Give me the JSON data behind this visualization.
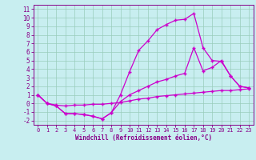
{
  "line1_x": [
    0,
    1,
    2,
    3,
    4,
    5,
    6,
    7,
    8,
    9,
    10,
    11,
    12,
    13,
    14,
    15,
    16,
    17,
    18,
    19,
    20,
    21,
    22,
    23
  ],
  "line1_y": [
    1.0,
    0.0,
    -0.3,
    -1.2,
    -1.2,
    -1.3,
    -1.5,
    -1.8,
    -1.1,
    1.0,
    3.7,
    6.2,
    7.3,
    8.6,
    9.2,
    9.7,
    9.8,
    10.5,
    6.5,
    5.0,
    4.9,
    3.2,
    2.0,
    1.8
  ],
  "line2_x": [
    0,
    1,
    2,
    3,
    4,
    5,
    6,
    7,
    8,
    9,
    10,
    11,
    12,
    13,
    14,
    15,
    16,
    17,
    18,
    19,
    20,
    21,
    22,
    23
  ],
  "line2_y": [
    1.0,
    0.0,
    -0.3,
    -1.2,
    -1.2,
    -1.3,
    -1.5,
    -1.8,
    -1.1,
    0.2,
    1.0,
    1.5,
    2.0,
    2.5,
    2.8,
    3.2,
    3.5,
    6.5,
    3.8,
    4.2,
    5.0,
    3.2,
    2.0,
    1.8
  ],
  "line3_x": [
    0,
    1,
    2,
    3,
    4,
    5,
    6,
    7,
    8,
    9,
    10,
    11,
    12,
    13,
    14,
    15,
    16,
    17,
    18,
    19,
    20,
    21,
    22,
    23
  ],
  "line3_y": [
    1.0,
    0.0,
    -0.2,
    -0.3,
    -0.2,
    -0.2,
    -0.1,
    -0.1,
    0.0,
    0.1,
    0.3,
    0.5,
    0.6,
    0.8,
    0.9,
    1.0,
    1.1,
    1.2,
    1.3,
    1.4,
    1.5,
    1.5,
    1.6,
    1.7
  ],
  "line_color": "#cc00cc",
  "marker": "+",
  "bg_color": "#c8eef0",
  "grid_color": "#99ccbb",
  "xlabel": "Windchill (Refroidissement éolien,°C)",
  "xlim": [
    -0.5,
    23.5
  ],
  "ylim": [
    -2.5,
    11.5
  ],
  "yticks": [
    -2,
    -1,
    0,
    1,
    2,
    3,
    4,
    5,
    6,
    7,
    8,
    9,
    10,
    11
  ],
  "xticks": [
    0,
    1,
    2,
    3,
    4,
    5,
    6,
    7,
    8,
    9,
    10,
    11,
    12,
    13,
    14,
    15,
    16,
    17,
    18,
    19,
    20,
    21,
    22,
    23
  ],
  "tick_color": "#880088",
  "axis_color": "#880088",
  "label_fontsize": 5.5,
  "tick_fontsize": 5.0
}
